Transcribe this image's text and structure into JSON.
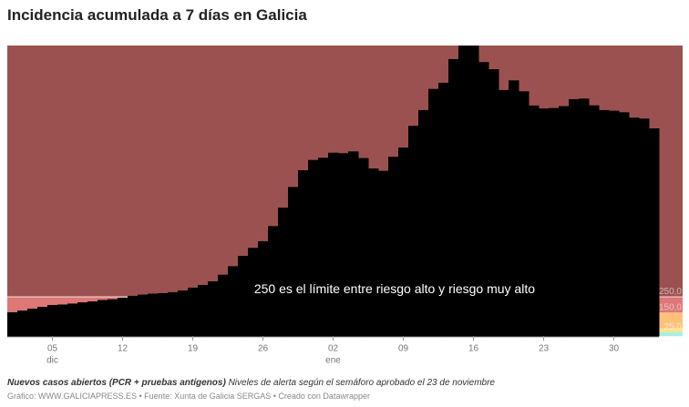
{
  "title": "Incidencia acumulada a 7 días en Galicia",
  "notes": {
    "bold": "Nuevos casos abiertos (PCR + pruebas antígenos)",
    "text": "Niveles de alerta según el semáforo aprobado el 23 de noviembre"
  },
  "credits": "Gráfico: WWW.GALICIAPRESS.ES • Fuente: Xunta de Galicia SERGAS • Creado con Datawrapper",
  "chart_data": {
    "type": "area",
    "start_date": "2020-12-01",
    "x": [
      "01 dic",
      "02 dic",
      "03 dic",
      "04 dic",
      "05 dic",
      "06 dic",
      "07 dic",
      "08 dic",
      "09 dic",
      "10 dic",
      "11 dic",
      "12 dic",
      "13 dic",
      "14 dic",
      "15 dic",
      "16 dic",
      "17 dic",
      "18 dic",
      "19 dic",
      "20 dic",
      "21 dic",
      "22 dic",
      "23 dic",
      "24 dic",
      "25 dic",
      "26 dic",
      "27 dic",
      "28 dic",
      "29 dic",
      "30 dic",
      "31 dic",
      "01 ene",
      "02 ene",
      "03 ene",
      "04 ene",
      "05 ene",
      "06 ene",
      "07 ene",
      "08 ene",
      "09 ene",
      "10 ene",
      "11 ene",
      "12 ene",
      "13 ene",
      "14 ene",
      "15 ene",
      "16 ene",
      "17 ene",
      "18 ene",
      "19 ene",
      "20 ene",
      "21 ene",
      "22 ene",
      "23 ene",
      "24 ene",
      "25 ene",
      "26 ene",
      "27 ene",
      "28 ene",
      "29 ene",
      "30 ene",
      "31 ene",
      "01 feb",
      "02 feb",
      "03 feb"
    ],
    "values": [
      152,
      163,
      175,
      186,
      198,
      201,
      207,
      215,
      221,
      230,
      235,
      244,
      256,
      264,
      270,
      273,
      279,
      290,
      308,
      325,
      348,
      390,
      444,
      509,
      560,
      602,
      698,
      815,
      946,
      1052,
      1117,
      1131,
      1163,
      1160,
      1171,
      1129,
      1063,
      1048,
      1137,
      1196,
      1333,
      1433,
      1567,
      1606,
      1756,
      1842,
      1842,
      1737,
      1692,
      1560,
      1621,
      1552,
      1462,
      1443,
      1446,
      1458,
      1502,
      1506,
      1463,
      1433,
      1429,
      1419,
      1385,
      1379,
      1317
    ],
    "ylim": [
      0,
      1842
    ],
    "x_ticks": [
      {
        "label": "05",
        "sub": "dic",
        "index": 4
      },
      {
        "label": "12",
        "sub": "",
        "index": 11
      },
      {
        "label": "19",
        "sub": "",
        "index": 18
      },
      {
        "label": "26",
        "sub": "",
        "index": 25
      },
      {
        "label": "02",
        "sub": "ene",
        "index": 32
      },
      {
        "label": "09",
        "sub": "",
        "index": 39
      },
      {
        "label": "16",
        "sub": "",
        "index": 46
      },
      {
        "label": "23",
        "sub": "",
        "index": 53
      },
      {
        "label": "30",
        "sub": "",
        "index": 60
      }
    ],
    "y_labels": [
      {
        "value": 250,
        "label": "250,0"
      },
      {
        "value": 150,
        "label": "150,0"
      },
      {
        "value": 25,
        "label": "25,0"
      }
    ],
    "bands": [
      {
        "from": 250,
        "to": 1842,
        "color": "#9c5151"
      },
      {
        "from": 150,
        "to": 250,
        "color": "#de7777"
      },
      {
        "from": 50,
        "to": 150,
        "color": "#fcc27c"
      },
      {
        "from": 25,
        "to": 50,
        "color": "#f9e48c"
      },
      {
        "from": 0,
        "to": 25,
        "color": "#a6efe6"
      }
    ],
    "area_color": "#000000",
    "annotation": {
      "text": "250 es el límite entre riesgo alto y riesgo muy alto",
      "value": 250,
      "index": 52
    }
  }
}
